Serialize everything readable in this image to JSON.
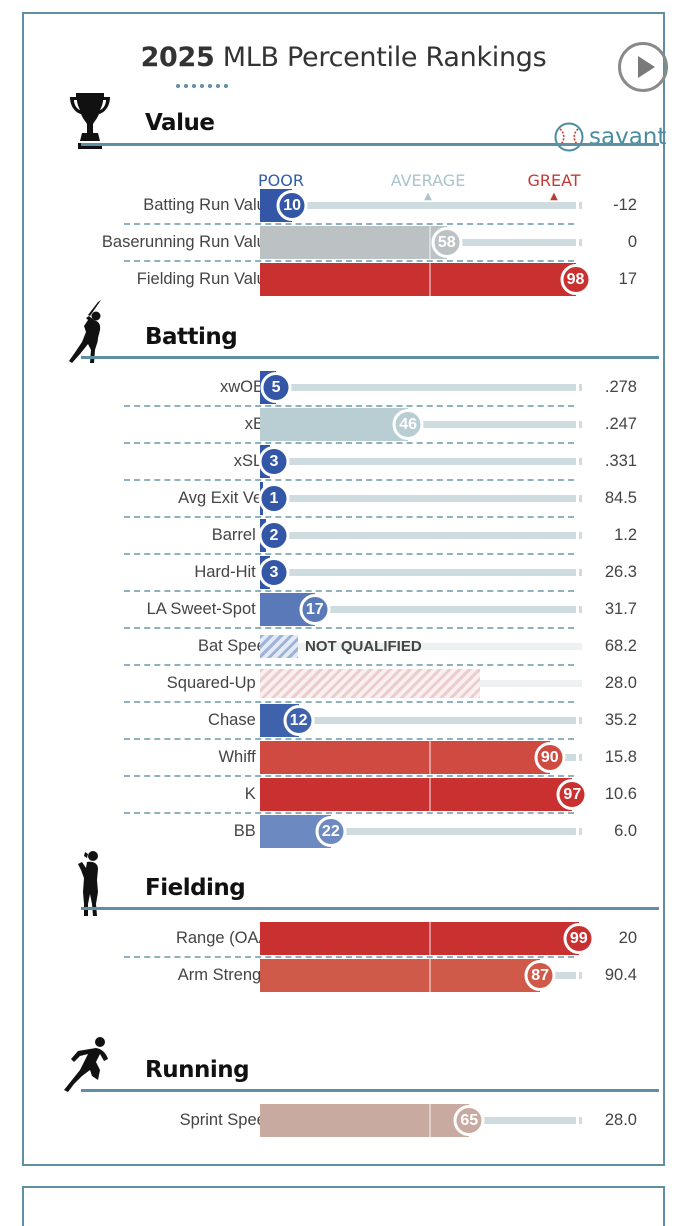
{
  "title": {
    "year": "2025",
    "rest": " MLB Percentile Rankings"
  },
  "brand": {
    "name": "savant",
    "color": "#4a8da0"
  },
  "legend": {
    "poor": {
      "label": "POOR",
      "color": "#2f5ea8"
    },
    "average": {
      "label": "AVERAGE",
      "color": "#a9c4cc"
    },
    "great": {
      "label": "GREAT",
      "color": "#c23a36"
    }
  },
  "sections": [
    {
      "title": "Value",
      "icon": "trophy-icon",
      "metrics": [
        {
          "label": "Batting Run Value",
          "percentile": 10,
          "value": "-12",
          "color": "#3357a6"
        },
        {
          "label": "Baserunning Run Value",
          "percentile": 58,
          "value": "0",
          "color": "#bcc2c3"
        },
        {
          "label": "Fielding Run Value",
          "percentile": 98,
          "value": "17",
          "color": "#c8312f"
        }
      ]
    },
    {
      "title": "Batting",
      "icon": "batter-icon",
      "metrics": [
        {
          "label": "xwOBA",
          "percentile": 5,
          "value": ".278",
          "color": "#3357a6"
        },
        {
          "label": "xBA",
          "percentile": 46,
          "value": ".247",
          "color": "#b8ced3"
        },
        {
          "label": "xSLG",
          "percentile": 3,
          "value": ".331",
          "color": "#3357a6"
        },
        {
          "label": "Avg Exit Velo",
          "percentile": 1,
          "value": "84.5",
          "color": "#3357a6"
        },
        {
          "label": "Barrel %",
          "percentile": 2,
          "value": "1.2",
          "color": "#3357a6"
        },
        {
          "label": "Hard-Hit %",
          "percentile": 3,
          "value": "26.3",
          "color": "#3357a6"
        },
        {
          "label": "LA Sweet-Spot %",
          "percentile": 17,
          "value": "31.7",
          "color": "#5a79b8"
        },
        {
          "label": "Bat Speed",
          "percentile": null,
          "value": "68.2",
          "status": "NOT QUALIFIED",
          "hatch": "blue"
        },
        {
          "label": "Squared-Up %",
          "percentile": null,
          "value": "28.0",
          "hatch": "red"
        },
        {
          "label": "Chase %",
          "percentile": 12,
          "value": "35.2",
          "color": "#3f62ac"
        },
        {
          "label": "Whiff %",
          "percentile": 90,
          "value": "15.8",
          "color": "#cf4a40"
        },
        {
          "label": "K %",
          "percentile": 97,
          "value": "10.6",
          "color": "#c8312f"
        },
        {
          "label": "BB %",
          "percentile": 22,
          "value": "6.0",
          "color": "#6d89c1"
        }
      ]
    },
    {
      "title": "Fielding",
      "icon": "fielder-icon",
      "metrics": [
        {
          "label": "Range (OAA)",
          "percentile": 99,
          "value": "20",
          "color": "#c8312f"
        },
        {
          "label": "Arm Strength",
          "percentile": 87,
          "value": "90.4",
          "color": "#d05a4a"
        }
      ]
    },
    {
      "title": "Running",
      "icon": "runner-icon",
      "metrics": [
        {
          "label": "Sprint Speed",
          "percentile": 65,
          "value": "28.0",
          "color": "#c9aaa1"
        }
      ]
    }
  ]
}
